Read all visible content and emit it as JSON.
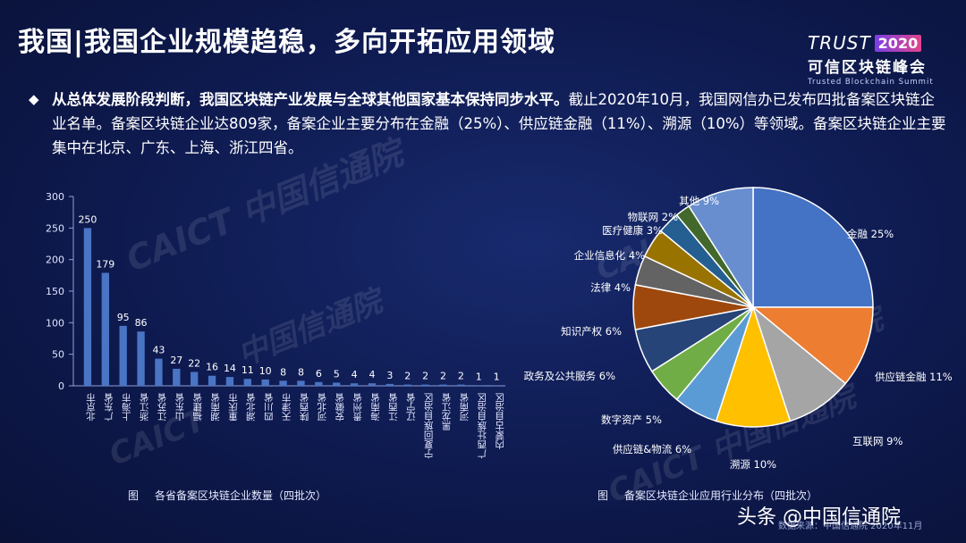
{
  "slide": {
    "title": "我国|我国企业规模趋稳，多向开拓应用领域",
    "bullet_mark": "◆",
    "bullet_bold": "从总体发展阶段判断，我国区块链产业发展与全球其他国家基本保持同步水平。",
    "bullet_rest": "截止2020年10月，我国网信办已发布四批备案区块链企业名单。备案区块链企业达809家，备案企业主要分布在金融（25%）、供应链金融（11%）、溯源（10%）等领域。备案区块链企业主要集中在北京、广东、上海、浙江四省。"
  },
  "logo": {
    "trust": "TRUST",
    "year": "2020",
    "cn": "可信区块链峰会",
    "en": "Trusted Blockchain Summit"
  },
  "watermarks": {
    "w1": "CAICT 中国信通院",
    "w2": "中国信通院",
    "w3": "CAICT 中国",
    "w4": "中国信通院",
    "w5": "CAICT",
    "w6": "CAICT 中国信通院"
  },
  "captions": {
    "left_num": "图",
    "left": "各省备案区块链企业数量（四批次）",
    "right_num": "图",
    "right": "备案区块链企业应用行业分布（四批次）"
  },
  "source": "数据来源：中国信通院 2020年11月",
  "toutiao": "头条 @中国信通院",
  "colors": {
    "bar": "#4a74c4",
    "pie": [
      "#4472c4",
      "#ed7d31",
      "#a5a5a5",
      "#ffc000",
      "#5b9bd5",
      "#70ad47",
      "#264478",
      "#9e480e",
      "#636363",
      "#997300",
      "#255e91",
      "#43682b",
      "#698ed0"
    ]
  },
  "chart_data": [
    {
      "type": "bar",
      "categories": [
        "北京市",
        "广东省",
        "上海市",
        "浙江省",
        "江苏省",
        "山东省",
        "福建省",
        "湖南省",
        "重庆市",
        "湖北省",
        "四川省",
        "天津市",
        "陕西省",
        "河北省",
        "安徽省",
        "贵州省",
        "海南省",
        "江西省",
        "辽宁省",
        "宁夏回族自治区",
        "黑龙江省",
        "河南省",
        "广西壮族自治区",
        "内蒙古自治区"
      ],
      "values": [
        250,
        179,
        95,
        86,
        43,
        27,
        22,
        16,
        14,
        11,
        10,
        8,
        8,
        6,
        5,
        4,
        4,
        3,
        2,
        2,
        2,
        2,
        1,
        1
      ],
      "yticks": [
        0,
        50,
        100,
        150,
        200,
        250,
        300
      ],
      "ylim": [
        0,
        300
      ],
      "title": "各省备案区块链企业数量（四批次）"
    },
    {
      "type": "pie",
      "labels": [
        "金融",
        "供应链金融",
        "互联网",
        "溯源",
        "供应链&物流",
        "数字资产",
        "政务及公共服务",
        "知识产权",
        "法律",
        "企业信息化",
        "医疗健康",
        "物联网",
        "其他"
      ],
      "values": [
        25,
        11,
        9,
        10,
        6,
        5,
        6,
        6,
        4,
        4,
        3,
        2,
        9
      ],
      "label_texts": [
        "金融 25%",
        "供应链金融 11%",
        "互联网 9%",
        "溯源 10%",
        "供应链&物流 6%",
        "数字资产 5%",
        "政务及公共服务 6%",
        "知识产权 6%",
        "法律 4%",
        "企业信息化 4%",
        "医疗健康 3%",
        "物联网 2%",
        "其他 9%"
      ],
      "title": "备案区块链企业应用行业分布（四批次）"
    }
  ]
}
